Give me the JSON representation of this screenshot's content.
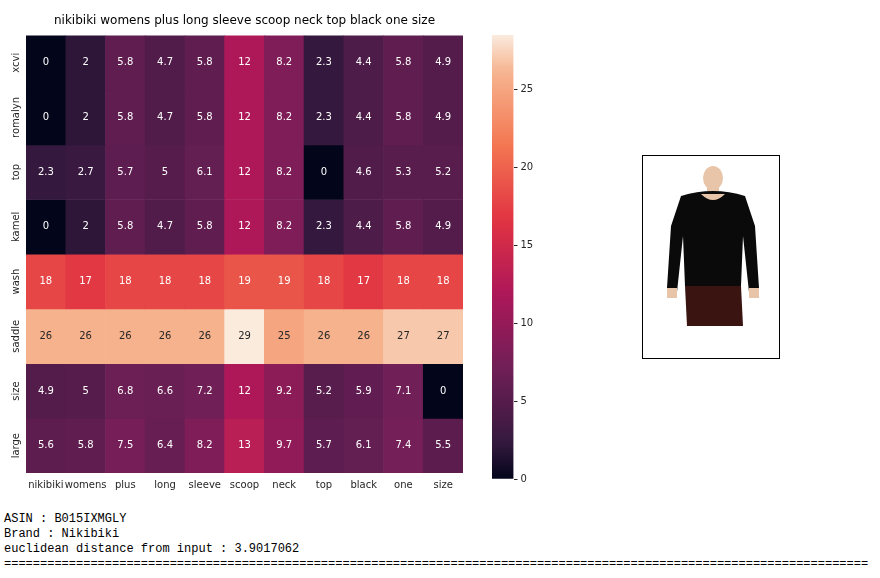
{
  "chart_data": {
    "type": "heatmap",
    "title": "nikibiki womens plus long sleeve scoop neck top black one size",
    "x": [
      "nikibiki",
      "womens",
      "plus",
      "long",
      "sleeve",
      "scoop",
      "neck",
      "top",
      "black",
      "one",
      "size"
    ],
    "y": [
      "xcvi",
      "romalyn",
      "top",
      "kamel",
      "wash",
      "saddle",
      "size",
      "large"
    ],
    "cells": [
      [
        0,
        2,
        5.8,
        4.7,
        5.8,
        12,
        8.2,
        2.3,
        4.4,
        5.8,
        4.9
      ],
      [
        0,
        2,
        5.8,
        4.7,
        5.8,
        12,
        8.2,
        2.3,
        4.4,
        5.8,
        4.9
      ],
      [
        2.3,
        2.7,
        5.7,
        5,
        6.1,
        12,
        8.2,
        0,
        4.6,
        5.3,
        5.2
      ],
      [
        0,
        2,
        5.8,
        4.7,
        5.8,
        12,
        8.2,
        2.3,
        4.4,
        5.8,
        4.9
      ],
      [
        18,
        17,
        18,
        18,
        18,
        19,
        19,
        18,
        17,
        18,
        18
      ],
      [
        26,
        26,
        26,
        26,
        26,
        29,
        25,
        26,
        26,
        27,
        27
      ],
      [
        4.9,
        5,
        6.8,
        6.6,
        7.2,
        12,
        9.2,
        5.2,
        5.9,
        7.1,
        0
      ],
      [
        5.6,
        5.8,
        7.5,
        6.4,
        8.2,
        13,
        9.7,
        5.7,
        6.1,
        7.4,
        5.5
      ]
    ],
    "data_labels": true,
    "colorbar_range": [
      0,
      28.5
    ],
    "colorbar_ticks": [
      0,
      5,
      10,
      15,
      20,
      25
    ]
  },
  "info_lines": [
    "ASIN : B015IXMGLY",
    "Brand : Nikibiki",
    "euclidean distance from input : 3.9017062"
  ],
  "separator": "========================================================================================================================"
}
